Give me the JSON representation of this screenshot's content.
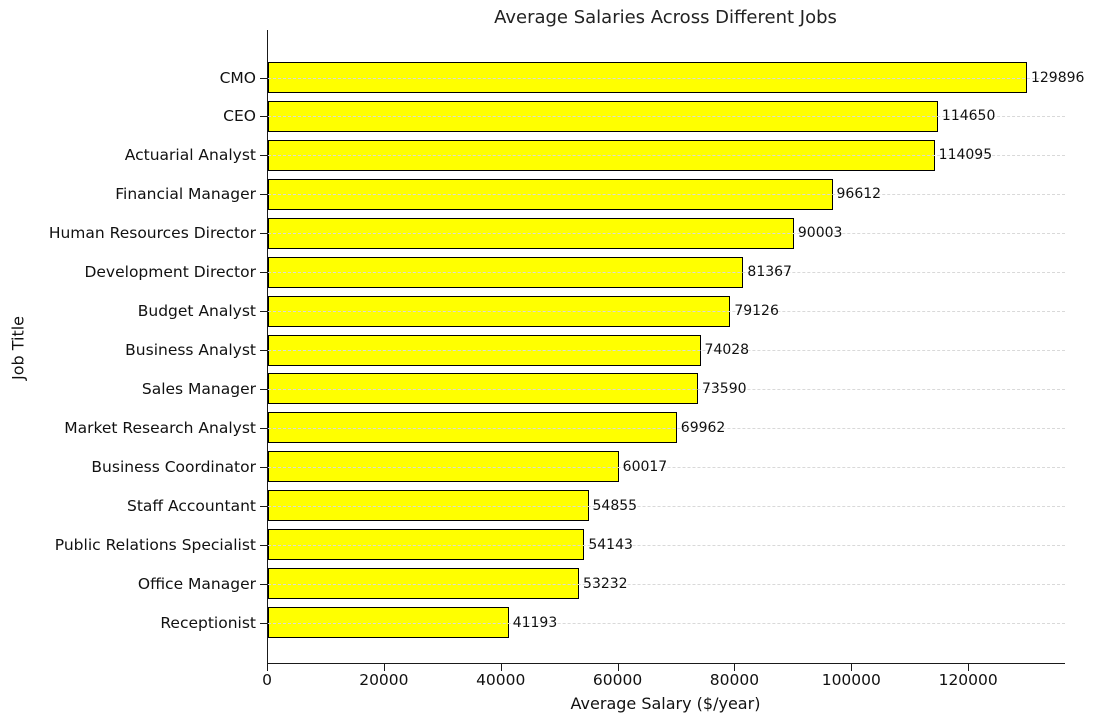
{
  "chart_data": {
    "type": "bar",
    "orientation": "horizontal",
    "title": "Average Salaries Across Different Jobs",
    "xlabel": "Average Salary ($/year)",
    "ylabel": "Job Title",
    "categories": [
      "CMO",
      "CEO",
      "Actuarial Analyst",
      "Financial Manager",
      "Human Resources Director",
      "Development Director",
      "Budget Analyst",
      "Business Analyst",
      "Sales Manager",
      "Market Research Analyst",
      "Business Coordinator",
      "Staff Accountant",
      "Public Relations Specialist",
      "Office Manager",
      "Receptionist"
    ],
    "values": [
      129896,
      114650,
      114095,
      96612,
      90003,
      81367,
      79126,
      74028,
      73590,
      69962,
      60017,
      54855,
      54143,
      53232,
      41193
    ],
    "value_labels_shown": true,
    "xticks": [
      0,
      20000,
      40000,
      60000,
      80000,
      100000,
      120000
    ],
    "xlim": [
      0,
      136400
    ],
    "grid": "horizontal-dashed",
    "legend": "none",
    "bar_color": "#ffff00",
    "bar_edge_color": "#000000",
    "gridline_color": "#d9d9d9",
    "text_color": "#111111"
  }
}
